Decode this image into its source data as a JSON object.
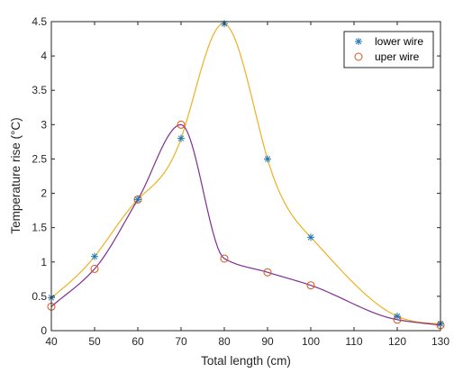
{
  "chart_data": {
    "type": "line",
    "title": "",
    "xlabel": "Total length (cm)",
    "ylabel": "Temperature rise (°C)",
    "xlim": [
      40,
      130
    ],
    "ylim": [
      0,
      4.5
    ],
    "xticks": [
      "40",
      "50",
      "60",
      "70",
      "80",
      "90",
      "100",
      "110",
      "120",
      "130"
    ],
    "yticks": [
      "0",
      "0.5",
      "1",
      "1.5",
      "2",
      "2.5",
      "3",
      "3.5",
      "4",
      "4.5"
    ],
    "grid": false,
    "legend_position": "top-right",
    "series": [
      {
        "name": "lower wire",
        "marker": "asterisk",
        "marker_color": "#1f77b4",
        "line_color": "#EDB120",
        "x": [
          40,
          50,
          60,
          70,
          80,
          90,
          100,
          120,
          130
        ],
        "y": [
          0.48,
          1.08,
          1.91,
          2.8,
          4.47,
          2.5,
          1.36,
          0.21,
          0.1
        ]
      },
      {
        "name": "uper wire",
        "marker": "circle",
        "marker_color": "#D95319",
        "line_color": "#7E2F8E",
        "x": [
          40,
          50,
          60,
          70,
          80,
          90,
          100,
          120,
          130
        ],
        "y": [
          0.35,
          0.9,
          1.91,
          3.0,
          1.05,
          0.85,
          0.66,
          0.16,
          0.08
        ]
      }
    ]
  }
}
